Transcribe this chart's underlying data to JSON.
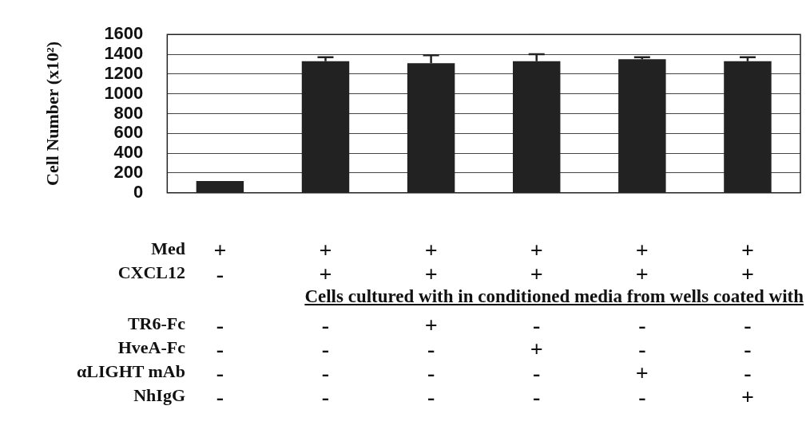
{
  "chart_data": {
    "type": "bar",
    "ylabel": "Cell Number (x10²)",
    "categories": [
      "+\n-\n-\n-\n-\n-",
      "+\n+\n-\n-\n-\n-",
      "+\n+\n+\n-\n-\n-",
      "+\n+\n-\n+\n-\n-",
      "+\n+\n-\n-\n+\n-",
      "+\n+\n-\n-\n-\n+"
    ],
    "values": [
      120,
      1330,
      1310,
      1330,
      1350,
      1330
    ],
    "errors": [
      null,
      [
        1330,
        1370
      ],
      [
        1310,
        1390
      ],
      [
        1330,
        1400
      ],
      [
        1350,
        1370
      ],
      [
        1330,
        1370
      ]
    ],
    "color": "#222222",
    "annotations": [
      "Med",
      "CXCL12",
      "Cells cultured with in conditioned media from wells coated with",
      "TR6-Fc",
      "HveA-Fc",
      "αLIGHT mAb",
      "NhIgG"
    ],
    "ylim": [
      0,
      1600
    ],
    "yticks": [
      0,
      200,
      400,
      600,
      800,
      1000,
      1200,
      1400,
      1600
    ],
    "grid": "y"
  }
}
